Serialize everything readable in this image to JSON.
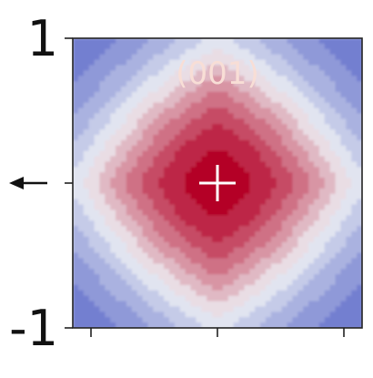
{
  "chart_data": {
    "type": "heatmap",
    "title": "",
    "xlabel": "",
    "ylabel": "",
    "panel_label": "(001)",
    "ylim": [
      -1,
      1
    ],
    "xlim": [
      -1,
      1
    ],
    "y_ticks": [
      {
        "value": 1,
        "label": "1"
      },
      {
        "value": 0,
        "label": ""
      },
      {
        "value": -1,
        "label": "-1"
      }
    ],
    "x_ticks": [
      {
        "value": -1,
        "label": ""
      },
      {
        "value": 0,
        "label": ""
      },
      {
        "value": 1,
        "label": ""
      }
    ],
    "center_marker": {
      "x": 0,
      "y": 0,
      "symbol": "+"
    },
    "arrow_indicator": {
      "y": 0,
      "direction": "left"
    },
    "colormap": {
      "name": "coolwarm",
      "low": "#3b4cc0",
      "mid": "#eef0f4",
      "high": "#b40426"
    },
    "contour_levels": 12,
    "grid": false,
    "legend": "none"
  }
}
